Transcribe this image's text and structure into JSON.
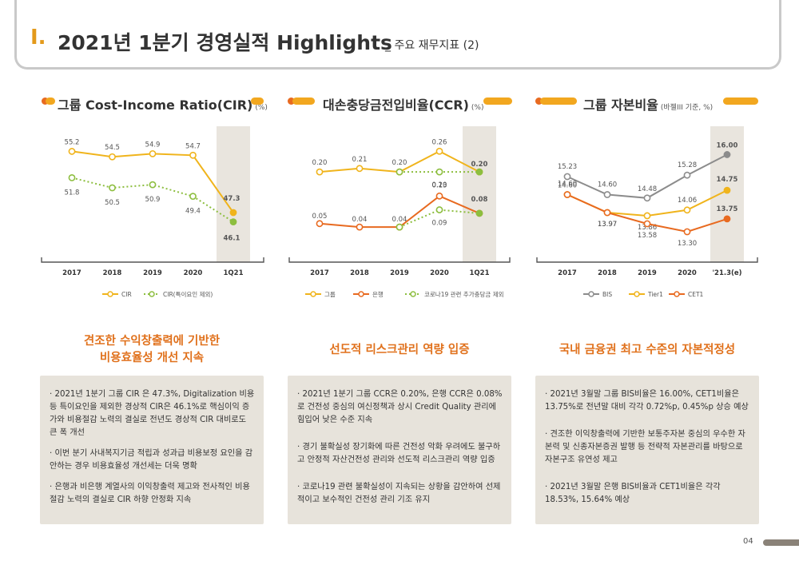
{
  "header": {
    "section_number": "Ⅰ.",
    "title": "2021년 1분기 경영실적 Highlights",
    "subtitle": "_ 주요 재무지표 (2)"
  },
  "page_number": "04",
  "colors": {
    "orange_light": "#F2A71F",
    "orange_dark": "#E86A20",
    "green": "#8DBE3F",
    "gray": "#8C8C8C",
    "yellow": "#F0B41C",
    "panel": "#E7E3DB",
    "shade": "#E9E5DE"
  },
  "chart_data": [
    {
      "type": "line",
      "title": "그룹 Cost-Income Ratio(CIR)",
      "unit": "(%)",
      "categories": [
        "2017",
        "2018",
        "2019",
        "2020",
        "1Q21"
      ],
      "series": [
        {
          "name": "CIR",
          "style": "solid",
          "color": "#F0B41C",
          "values": [
            55.2,
            54.5,
            54.9,
            54.7,
            47.3
          ],
          "labels": [
            "55.2",
            "54.5",
            "54.9",
            "54.7",
            "47.3"
          ]
        },
        {
          "name": "CIR(특이요인 제외)",
          "style": "dotted",
          "color": "#8DBE3F",
          "values": [
            51.8,
            50.5,
            50.9,
            49.4,
            46.1
          ],
          "labels": [
            "51.8",
            "50.5",
            "50.9",
            "49.4",
            "46.1"
          ]
        }
      ],
      "ylim": [
        44,
        57
      ],
      "highlight_category": "1Q21",
      "legend_position": "bottom"
    },
    {
      "type": "line",
      "title": "대손충당금전입비율(CCR)",
      "unit": "(%)",
      "categories": [
        "2017",
        "2018",
        "2019",
        "2020",
        "1Q21"
      ],
      "series": [
        {
          "name": "그룹",
          "style": "solid",
          "color": "#F0B41C",
          "values": [
            0.2,
            0.21,
            0.2,
            0.26,
            0.2
          ],
          "labels": [
            "0.20",
            "0.21",
            "0.20",
            "0.26",
            "0.20"
          ]
        },
        {
          "name": "은행",
          "style": "solid",
          "color": "#E86A20",
          "values": [
            0.05,
            0.04,
            0.04,
            0.13,
            0.08
          ],
          "labels": [
            "0.05",
            "0.04",
            "0.04",
            "0.13",
            "0.08"
          ]
        },
        {
          "name": "코로나19 관련 추가충당금 제외",
          "style": "dotted",
          "color": "#8DBE3F",
          "values": [
            null,
            null,
            0.2,
            0.2,
            0.2
          ],
          "labels": [
            null,
            null,
            null,
            "0.20",
            null
          ]
        },
        {
          "name": "코로나19 관련 추가충당금 제외(은행)",
          "legend": false,
          "style": "dotted",
          "color": "#8DBE3F",
          "values": [
            null,
            null,
            0.04,
            0.09,
            0.08
          ],
          "labels": [
            null,
            null,
            null,
            "0.09",
            null
          ]
        }
      ],
      "ylim": [
        -0.02,
        0.3
      ],
      "highlight_category": "1Q21",
      "legend_position": "bottom"
    },
    {
      "type": "line",
      "title": "그룹 자본비율",
      "unit": "(바젤III 기준, %)",
      "categories": [
        "2017",
        "2018",
        "2019",
        "2020",
        "'21.3(e)"
      ],
      "series": [
        {
          "name": "BIS",
          "style": "solid",
          "color": "#8C8C8C",
          "values": [
            15.23,
            14.6,
            14.48,
            15.28,
            16.0
          ],
          "labels": [
            "15.23",
            "14.60",
            "14.48",
            "15.28",
            "16.00"
          ]
        },
        {
          "name": "Tier1",
          "style": "solid",
          "color": "#F0B41C",
          "values": [
            14.6,
            13.97,
            13.86,
            14.06,
            14.75
          ],
          "labels": [
            "14.60",
            "13.97",
            "13.86",
            "14.06",
            "14.75"
          ]
        },
        {
          "name": "CET1",
          "style": "solid",
          "color": "#E86A20",
          "values": [
            14.6,
            13.97,
            13.58,
            13.3,
            13.75
          ],
          "labels": [
            "14.60",
            "13.97",
            "13.58",
            "13.30",
            "13.75"
          ]
        }
      ],
      "ylim": [
        12.6,
        16.6
      ],
      "highlight_category": "'21.3(e)",
      "legend_position": "bottom"
    }
  ],
  "highlights": [
    {
      "line1": "견조한 수익창출력에 기반한",
      "line2": "비용효율성 개선 지속"
    },
    {
      "line1": "선도적 리스크관리 역량 입증",
      "line2": ""
    },
    {
      "line1": "국내 금융권 최고 수준의 자본적정성",
      "line2": ""
    }
  ],
  "bullets": [
    [
      "· 2021년 1분기 그룹 CIR 은 47.3%, Digitalization 비용 등 특이요인을 제외한 경상적 CIR은 46.1%로 핵심이익 증가와 비용절감 노력의 결실로 전년도 경상적 CIR 대비로도 큰 폭 개선",
      "· 이번 분기 사내복지기금 적립과 성과급 비용보정 요인을 감안하는 경우 비용효율성 개선세는 더욱 명확",
      "· 은행과 비은행 계열사의 이익창출력 제고와 전사적인 비용절감 노력의 결실로 CIR 하향 안정화 지속"
    ],
    [
      "· 2021년 1분기 그룹 CCR은 0.20%, 은행 CCR은 0.08%로 건전성 중심의 여신정책과 상시 Credit Quality 관리에 힘입어 낮은 수준 지속",
      "· 경기 불확실성 장기화에 따른 건전성 악화 우려에도 불구하고 안정적 자산건전성 관리와 선도적 리스크관리 역량 입증",
      "· 코로나19 관련 불확실성이 지속되는 상황을 감안하여 선제적이고 보수적인 건전성 관리 기조 유지"
    ],
    [
      "· 2021년 3월말 그룹 BIS비율은 16.00%, CET1비율은 13.75%로 전년말 대비 각각 0.72%p, 0.45%p 상승 예상",
      "· 견조한 이익창출력에 기반한 보통주자본 중심의 우수한 자본력 및 신종자본증권 발행 등 전략적 자본관리를 바탕으로 자본구조 유연성 제고",
      "· 2021년 3월말 은행 BIS비율과 CET1비율은 각각 18.53%, 15.64% 예상"
    ]
  ]
}
